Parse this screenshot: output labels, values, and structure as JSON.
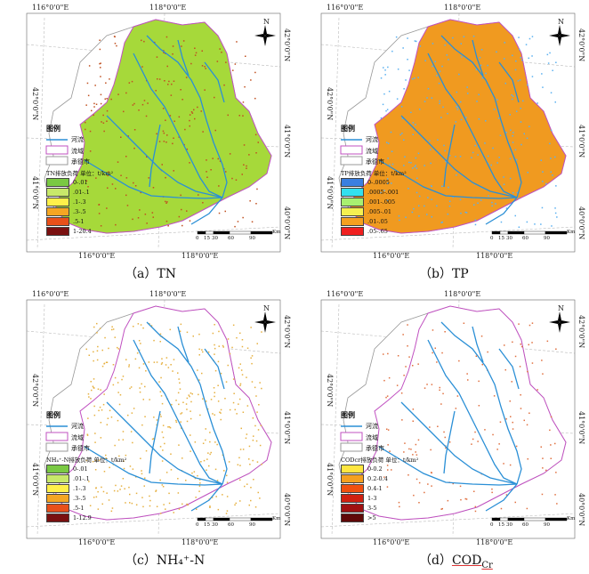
{
  "coords": {
    "top_left": "116°0'0\"E",
    "top_mid": "118°0'0\"E",
    "bot_left": "116°0'0\"E",
    "bot_mid": "118°0'0\"E",
    "r1": "42°0'0\"N",
    "r2": "41°0'0\"N",
    "r3": "40°0'0\"N",
    "l1": "42°0'0\"N",
    "l2": "41°0'0\"N"
  },
  "legend": {
    "title": "图例",
    "river": "河流",
    "basin": "流域",
    "city": "承德市"
  },
  "compass": "N",
  "scale": {
    "ticks": [
      "0",
      "15",
      "30",
      "60",
      "90"
    ],
    "unit": "Km"
  },
  "panels": [
    {
      "id": "tn",
      "caption_prefix": "（a）",
      "caption": "TN",
      "unit_label": "TN排放负荷  单位：t/km²",
      "classes": [
        {
          "label": "0-.01",
          "color": "#7ac943"
        },
        {
          "label": ".01-.1",
          "color": "#c8e86a"
        },
        {
          "label": ".1-.3",
          "color": "#fff04a"
        },
        {
          "label": ".3-.5",
          "color": "#f5a623"
        },
        {
          "label": ".5-1",
          "color": "#e8501a"
        },
        {
          "label": "1-20.4",
          "color": "#7a1010"
        }
      ],
      "base": "#a6d93a",
      "speck": "#c05020"
    },
    {
      "id": "tp",
      "caption_prefix": "（b）",
      "caption": "TP",
      "unit_label": "TP排放负荷  单位：t/km²",
      "classes": [
        {
          "label": "0-.0005",
          "color": "#3a7fe0"
        },
        {
          "label": ".0005-.001",
          "color": "#33e0f0"
        },
        {
          "label": ".001-.005",
          "color": "#a8f070"
        },
        {
          "label": ".005-.01",
          "color": "#f5f050"
        },
        {
          "label": ".01-.05",
          "color": "#f5a020"
        },
        {
          "label": ".05-.65",
          "color": "#f02020"
        }
      ],
      "base": "#f09a20",
      "speck": "#5ab0f0"
    },
    {
      "id": "nh",
      "caption_prefix": "（c）",
      "caption": "NH₄⁺-N",
      "unit_label": "NH₄⁺-N排放负荷  单位：t/km²",
      "classes": [
        {
          "label": "0-.01",
          "color": "#7ac943"
        },
        {
          "label": ".01-.1",
          "color": "#c8e86a"
        },
        {
          "label": ".1-.3",
          "color": "#fff04a"
        },
        {
          "label": ".3-.5",
          "color": "#f5a623"
        },
        {
          "label": ".5-1",
          "color": "#e8501a"
        },
        {
          "label": "1-12.9",
          "color": "#7a1010"
        }
      ],
      "base": "#ffffff",
      "speck": "#e6b040"
    },
    {
      "id": "cod",
      "caption_prefix": "（d）",
      "caption": "COD",
      "caption_sub": "Cr",
      "unit_label": "CODcr排放负荷  单位：t/km²",
      "classes": [
        {
          "label": "0-0.2",
          "color": "#ffe640"
        },
        {
          "label": "0.2-0.4",
          "color": "#f5a020"
        },
        {
          "label": "0.4-1",
          "color": "#f05010"
        },
        {
          "label": "1-3",
          "color": "#d02010"
        },
        {
          "label": "3-5",
          "color": "#a01010"
        },
        {
          "label": ">5",
          "color": "#600808"
        }
      ],
      "base": "#ffffff",
      "speck": "#e07040"
    }
  ],
  "colors": {
    "river": "#2a8fd6",
    "basin": "#c050c0",
    "city": "#999999"
  }
}
